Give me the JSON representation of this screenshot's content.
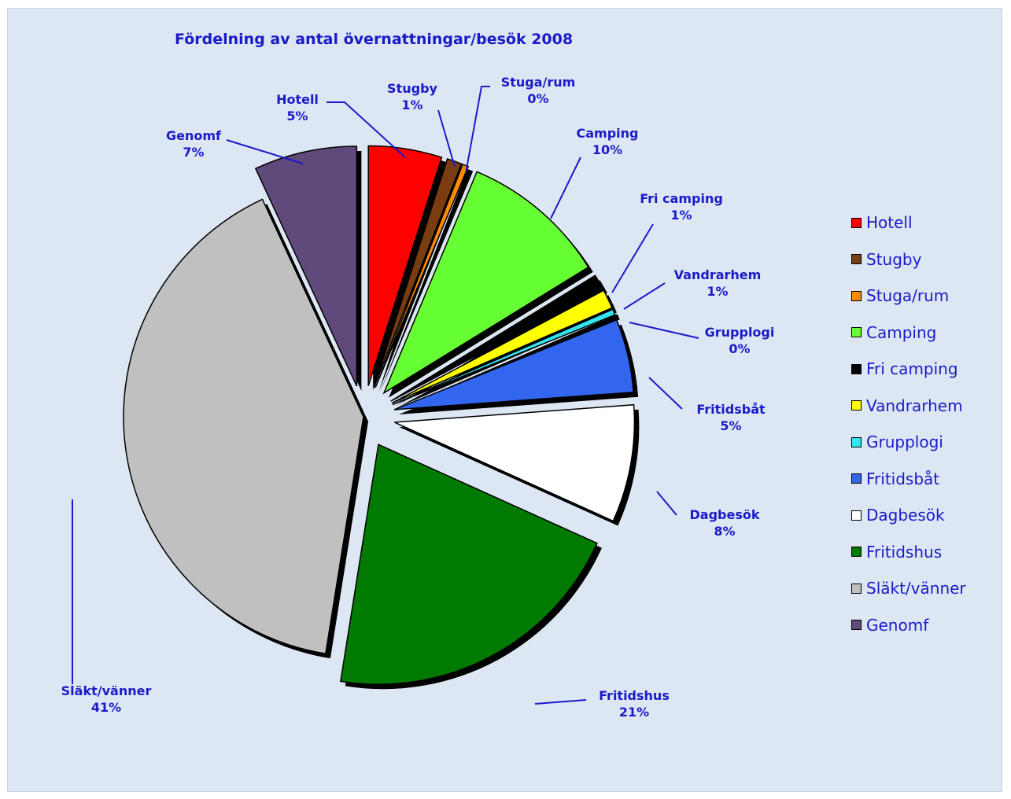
{
  "chart_data": {
    "type": "pie",
    "title": "Fördelning av antal övernattningar/besök 2008",
    "slices": [
      {
        "name": "Hotell",
        "value": 5,
        "label": "5%",
        "color": "#ff0000"
      },
      {
        "name": "Stugby",
        "value": 1,
        "label": "1%",
        "color": "#7a3d12"
      },
      {
        "name": "Stuga/rum",
        "value": 0.4,
        "label": "0%",
        "color": "#ff8c00"
      },
      {
        "name": "Camping",
        "value": 10,
        "label": "10%",
        "color": "#66ff33"
      },
      {
        "name": "Fri camping",
        "value": 1,
        "label": "1%",
        "color": "#000000"
      },
      {
        "name": "Vandrarhem",
        "value": 1.3,
        "label": "1%",
        "color": "#ffff00"
      },
      {
        "name": "Grupplogi",
        "value": 0.4,
        "label": "0%",
        "color": "#33e5f0"
      },
      {
        "name": "Fritidsbåt",
        "value": 5,
        "label": "5%",
        "color": "#3366ee"
      },
      {
        "name": "Dagbesök",
        "value": 8,
        "label": "8%",
        "color": "#ffffff"
      },
      {
        "name": "Fritidshus",
        "value": 21,
        "label": "21%",
        "color": "#007a00"
      },
      {
        "name": "Släkt/vänner",
        "value": 41,
        "label": "41%",
        "color": "#c0c0c0"
      },
      {
        "name": "Genomf",
        "value": 7,
        "label": "7%",
        "color": "#604a7b"
      }
    ],
    "legend_position": "right",
    "label_color": "#1a1ac8",
    "background": "#dde7f3"
  }
}
